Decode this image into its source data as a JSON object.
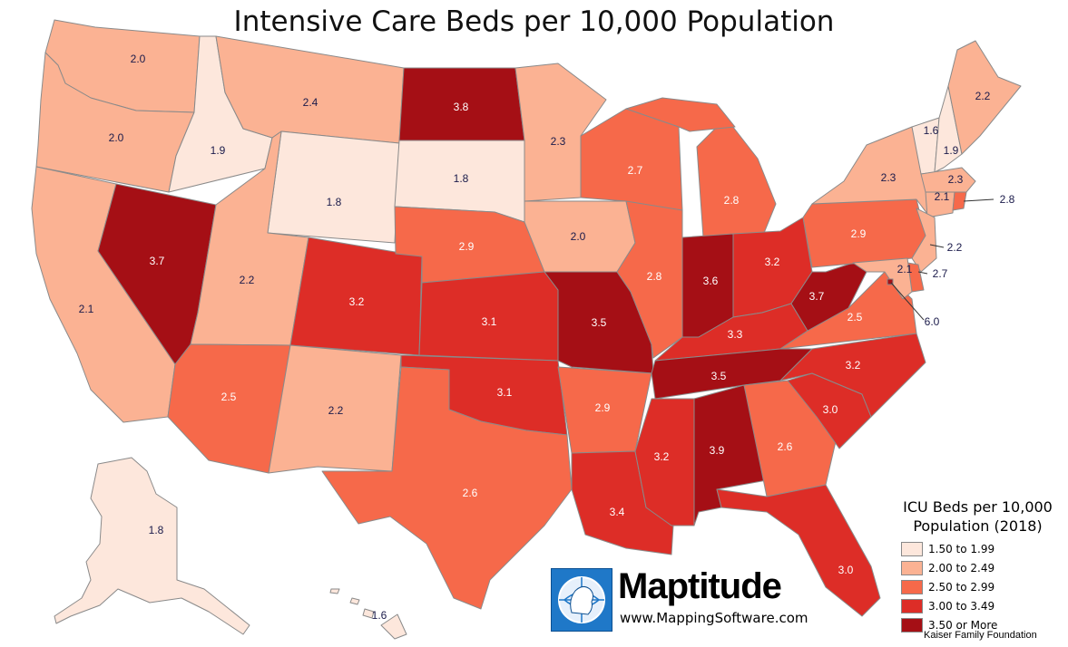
{
  "title": "Intensive Care Beds per 10,000 Population",
  "legend": {
    "title_line1": "ICU Beds per 10,000",
    "title_line2": "Population (2018)",
    "items": [
      {
        "label": "1.50 to 1.99",
        "color": "#fde7dc"
      },
      {
        "label": "2.00 to 2.49",
        "color": "#fbb293"
      },
      {
        "label": "2.50 to 2.99",
        "color": "#f6694a"
      },
      {
        "label": "3.00 to 3.49",
        "color": "#dd2d27"
      },
      {
        "label": "3.50 or More",
        "color": "#a50f15"
      }
    ]
  },
  "source": "Kaiser Family Foundation",
  "logo": {
    "name": "Maptitude",
    "url": "www.MappingSoftware.com",
    "icon": "globe-head-icon"
  },
  "states": [
    {
      "id": "WA",
      "value": "2.0"
    },
    {
      "id": "OR",
      "value": "2.0"
    },
    {
      "id": "CA",
      "value": "2.1"
    },
    {
      "id": "NV",
      "value": "3.7"
    },
    {
      "id": "ID",
      "value": "1.9"
    },
    {
      "id": "MT",
      "value": "2.4"
    },
    {
      "id": "WY",
      "value": "1.8"
    },
    {
      "id": "UT",
      "value": "2.2"
    },
    {
      "id": "AZ",
      "value": "2.5"
    },
    {
      "id": "CO",
      "value": "3.2"
    },
    {
      "id": "NM",
      "value": "2.2"
    },
    {
      "id": "ND",
      "value": "3.8"
    },
    {
      "id": "SD",
      "value": "1.8"
    },
    {
      "id": "NE",
      "value": "2.9"
    },
    {
      "id": "KS",
      "value": "3.1"
    },
    {
      "id": "OK",
      "value": "3.1"
    },
    {
      "id": "TX",
      "value": "2.6"
    },
    {
      "id": "MN",
      "value": "2.3"
    },
    {
      "id": "IA",
      "value": "2.0"
    },
    {
      "id": "MO",
      "value": "3.5"
    },
    {
      "id": "AR",
      "value": "2.9"
    },
    {
      "id": "LA",
      "value": "3.4"
    },
    {
      "id": "WI",
      "value": "2.7"
    },
    {
      "id": "IL",
      "value": "2.8"
    },
    {
      "id": "MI",
      "value": "2.8"
    },
    {
      "id": "IN",
      "value": "3.6"
    },
    {
      "id": "OH",
      "value": "3.2"
    },
    {
      "id": "KY",
      "value": "3.3"
    },
    {
      "id": "TN",
      "value": "3.5"
    },
    {
      "id": "MS",
      "value": "3.2"
    },
    {
      "id": "AL",
      "value": "3.9"
    },
    {
      "id": "GA",
      "value": "2.6"
    },
    {
      "id": "FL",
      "value": "3.0"
    },
    {
      "id": "SC",
      "value": "3.0"
    },
    {
      "id": "NC",
      "value": "3.2"
    },
    {
      "id": "VA",
      "value": "2.5"
    },
    {
      "id": "WV",
      "value": "3.7"
    },
    {
      "id": "PA",
      "value": "2.9"
    },
    {
      "id": "NY",
      "value": "2.3"
    },
    {
      "id": "VT",
      "value": "1.6"
    },
    {
      "id": "NH",
      "value": "1.9"
    },
    {
      "id": "ME",
      "value": "2.2"
    },
    {
      "id": "MA",
      "value": "2.3"
    },
    {
      "id": "CT",
      "value": "2.1"
    },
    {
      "id": "RI",
      "value": "2.8"
    },
    {
      "id": "NJ",
      "value": "2.2"
    },
    {
      "id": "DE",
      "value": "2.7"
    },
    {
      "id": "MD",
      "value": "2.1"
    },
    {
      "id": "DC",
      "value": "6.0"
    },
    {
      "id": "AK",
      "value": "1.8"
    },
    {
      "id": "HI",
      "value": "1.6"
    }
  ]
}
